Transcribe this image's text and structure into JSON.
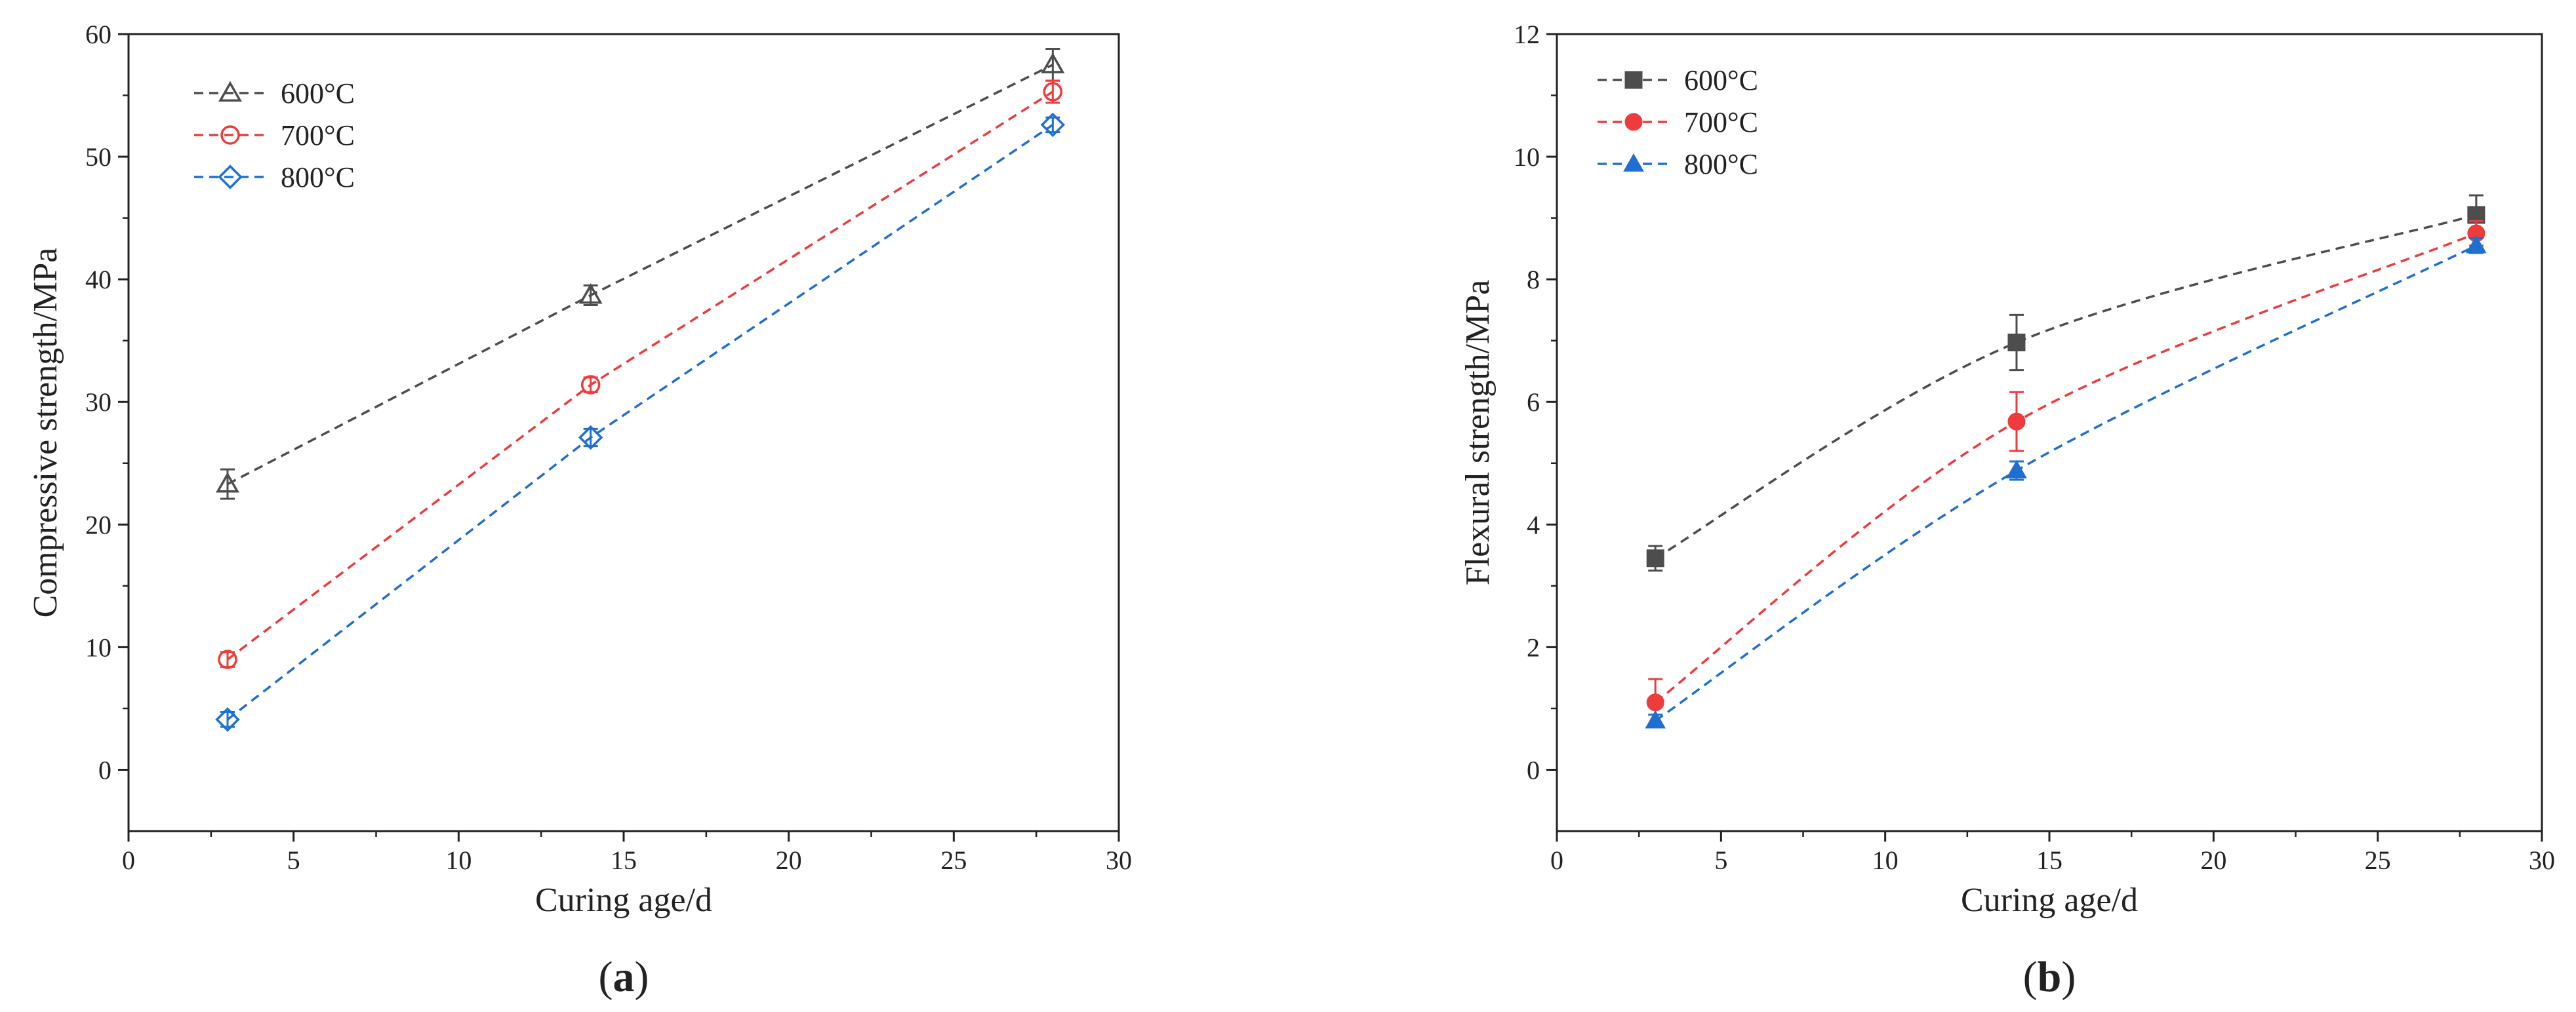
{
  "chart_data": [
    {
      "type": "line",
      "panel_label": "a",
      "xlabel": "Curing age/d",
      "ylabel": "Compressive strength/MPa",
      "xlim": [
        0,
        30
      ],
      "ylim": [
        -5,
        60
      ],
      "xticks": [
        0,
        5,
        10,
        15,
        20,
        25,
        30
      ],
      "yticks": [
        0,
        10,
        20,
        30,
        40,
        50,
        60
      ],
      "legend_position": "top-left",
      "marker_fill": "hollow",
      "series": [
        {
          "name": "600°C",
          "color": "#4d4d4d",
          "marker": "triangle",
          "x": [
            3,
            14,
            28
          ],
          "y": [
            23.3,
            38.7,
            57.5
          ],
          "err": [
            1.2,
            0.8,
            1.3
          ]
        },
        {
          "name": "700°C",
          "color": "#ee3b3b",
          "marker": "circle",
          "x": [
            3,
            14,
            28
          ],
          "y": [
            9.0,
            31.4,
            55.3
          ],
          "err": [
            0.6,
            0.6,
            0.9
          ]
        },
        {
          "name": "800°C",
          "color": "#1f6fd1",
          "marker": "diamond",
          "x": [
            3,
            14,
            28
          ],
          "y": [
            4.1,
            27.1,
            52.6
          ],
          "err": [
            0.6,
            0.7,
            0.6
          ]
        }
      ]
    },
    {
      "type": "line",
      "panel_label": "b",
      "xlabel": "Curing age/d",
      "ylabel": "Flexural strength/MPa",
      "xlim": [
        0,
        30
      ],
      "ylim": [
        -1,
        12
      ],
      "xticks": [
        0,
        5,
        10,
        15,
        20,
        25,
        30
      ],
      "yticks": [
        0,
        2,
        4,
        6,
        8,
        10,
        12
      ],
      "legend_position": "top-left",
      "marker_fill": "solid",
      "series": [
        {
          "name": "600°C",
          "color": "#4d4d4d",
          "marker": "square",
          "x": [
            3,
            14,
            28
          ],
          "y": [
            3.45,
            6.97,
            9.05
          ],
          "err": [
            0.2,
            0.45,
            0.32
          ]
        },
        {
          "name": "700°C",
          "color": "#ee3b3b",
          "marker": "circle",
          "x": [
            3,
            14,
            28
          ],
          "y": [
            1.1,
            5.68,
            8.75
          ],
          "err": [
            0.38,
            0.48,
            0.2
          ]
        },
        {
          "name": "800°C",
          "color": "#1f6fd1",
          "marker": "triangle",
          "x": [
            3,
            14,
            28
          ],
          "y": [
            0.8,
            4.88,
            8.55
          ],
          "err": [
            0.1,
            0.15,
            0.12
          ]
        }
      ]
    }
  ]
}
